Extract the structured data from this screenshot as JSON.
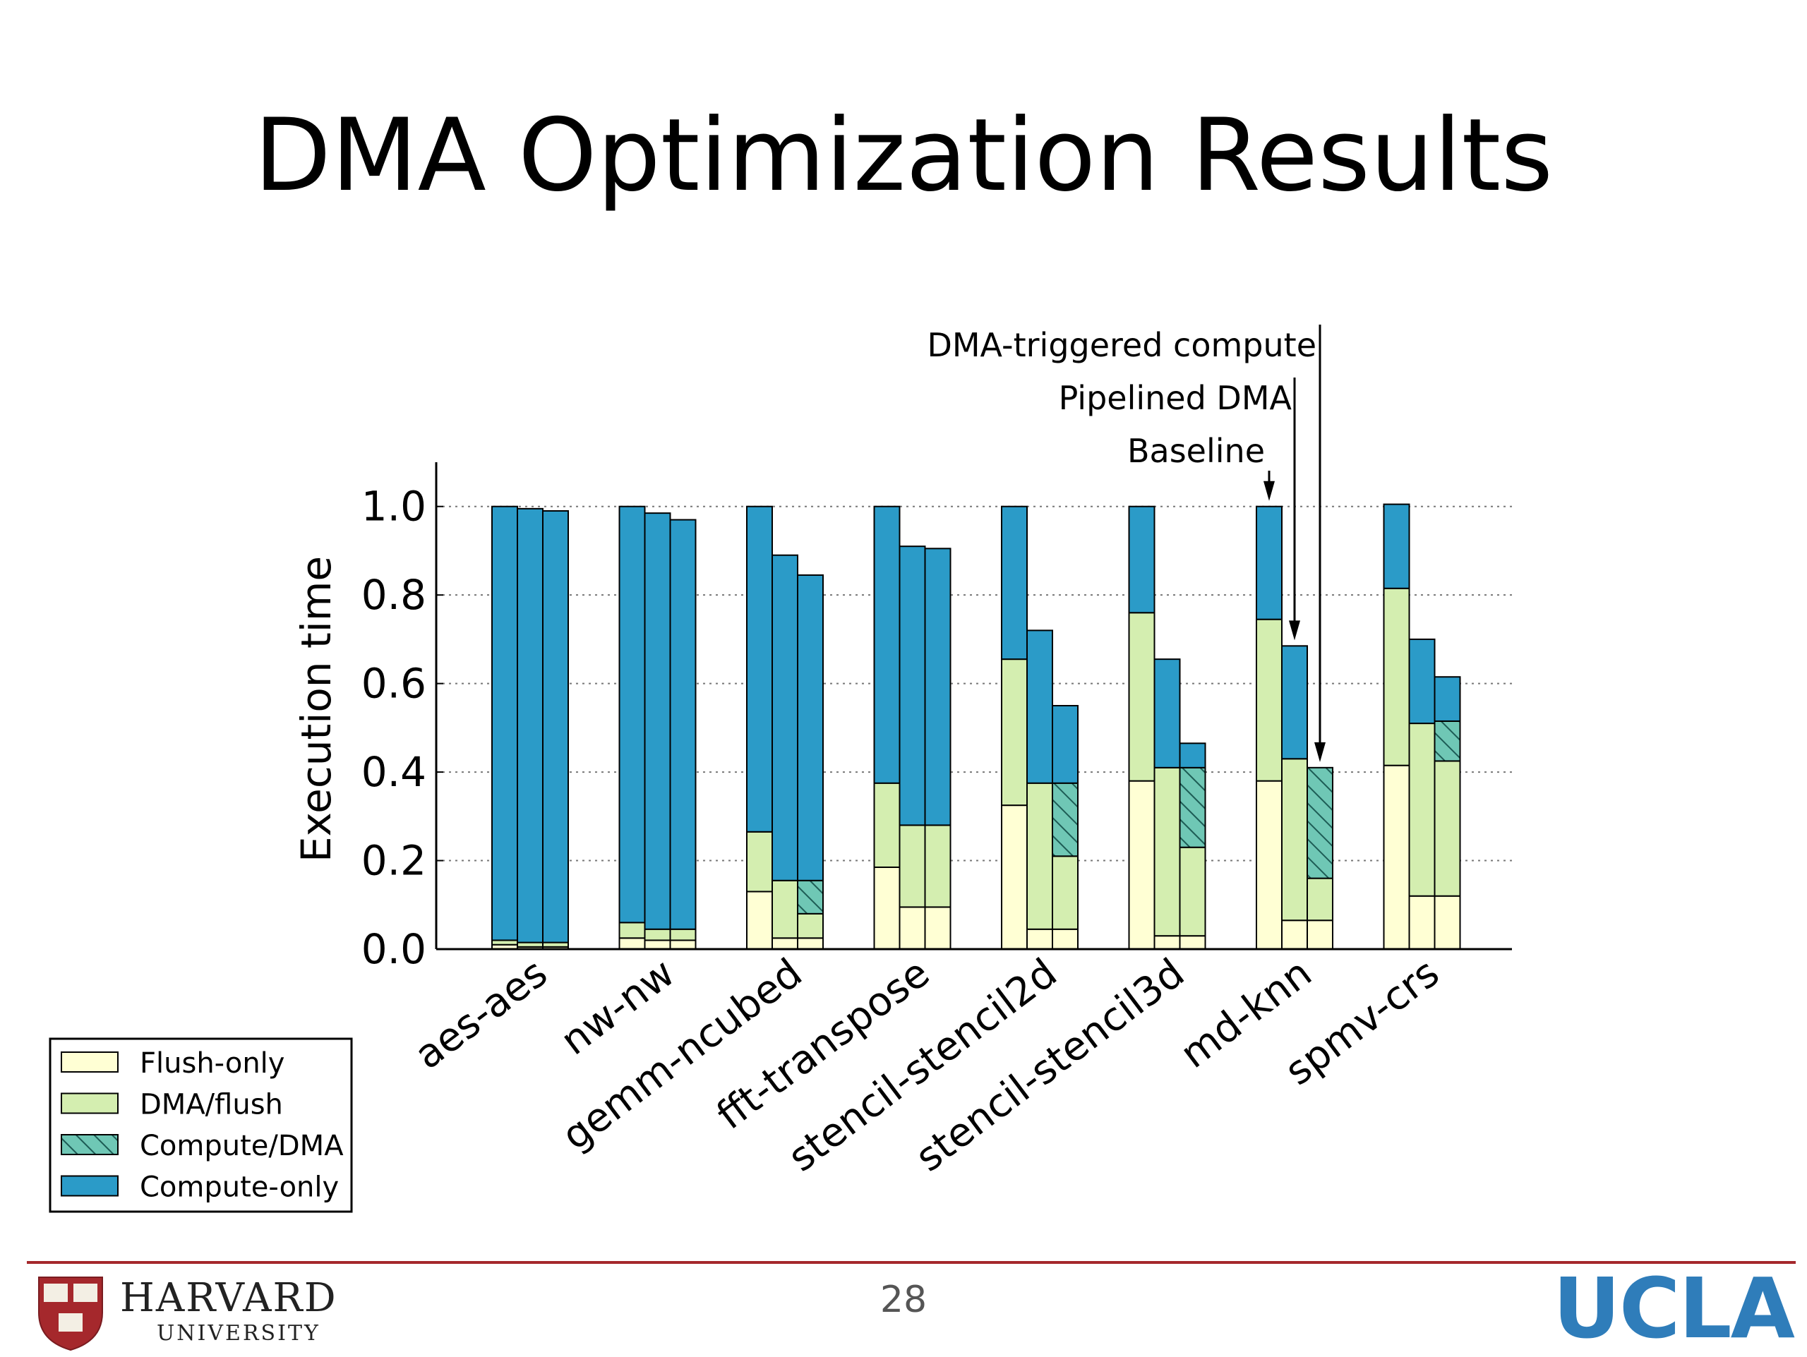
{
  "slide": {
    "title": "DMA Optimization Results",
    "page_number": "28"
  },
  "logos": {
    "harvard_name": "HARVARD",
    "harvard_sub": "UNIVERSITY",
    "harvard_shield": "VE RI TAS",
    "ucla": "UCLA"
  },
  "chart_data": {
    "type": "bar",
    "stacked": true,
    "ylabel": "Execution time",
    "ylim": [
      0,
      1.1
    ],
    "yticks": [
      "0.0",
      "0.2",
      "0.4",
      "0.6",
      "0.8",
      "1.0"
    ],
    "grid": "horizontal dotted",
    "categories": [
      "aes-aes",
      "nw-nw",
      "gemm-ncubed",
      "fft-transpose",
      "stencil-stencil2d",
      "stencil-stencil3d",
      "md-knn",
      "spmv-crs"
    ],
    "bars_per_category": [
      "Baseline",
      "Pipelined DMA",
      "DMA-triggered compute"
    ],
    "segment_colors": {
      "Flush-only": "#ffffd4",
      "DMA/flush": "#d4eeb0",
      "Compute/DMA": "#6fc7b5",
      "Compute-only": "#2b9bc8"
    },
    "legend": {
      "placement": "bottom-left, outside plot",
      "entries": [
        "Flush-only",
        "DMA/flush",
        "Compute/DMA",
        "Compute-only"
      ]
    },
    "series": [
      {
        "name": "Flush-only",
        "values": [
          [
            0.01,
            0.005,
            0.005
          ],
          [
            0.025,
            0.02,
            0.02
          ],
          [
            0.13,
            0.025,
            0.025
          ],
          [
            0.185,
            0.095,
            0.095
          ],
          [
            0.325,
            0.045,
            0.045
          ],
          [
            0.38,
            0.03,
            0.03
          ],
          [
            0.38,
            0.065,
            0.065
          ],
          [
            0.415,
            0.12,
            0.12
          ]
        ]
      },
      {
        "name": "DMA/flush",
        "values": [
          [
            0.01,
            0.01,
            0.01
          ],
          [
            0.035,
            0.025,
            0.025
          ],
          [
            0.135,
            0.13,
            0.055
          ],
          [
            0.19,
            0.185,
            0.185
          ],
          [
            0.33,
            0.33,
            0.165
          ],
          [
            0.38,
            0.38,
            0.2
          ],
          [
            0.365,
            0.365,
            0.095
          ],
          [
            0.4,
            0.39,
            0.305
          ]
        ]
      },
      {
        "name": "Compute/DMA",
        "values": [
          [
            0,
            0,
            0
          ],
          [
            0,
            0,
            0
          ],
          [
            0,
            0,
            0.075
          ],
          [
            0,
            0,
            0
          ],
          [
            0,
            0,
            0.165
          ],
          [
            0,
            0,
            0.18
          ],
          [
            0,
            0,
            0.25
          ],
          [
            0,
            0,
            0.09
          ]
        ]
      },
      {
        "name": "Compute-only",
        "values": [
          [
            0.98,
            0.98,
            0.975
          ],
          [
            0.94,
            0.94,
            0.925
          ],
          [
            0.735,
            0.735,
            0.69
          ],
          [
            0.625,
            0.63,
            0.625
          ],
          [
            0.345,
            0.345,
            0.175
          ],
          [
            0.24,
            0.245,
            0.055
          ],
          [
            0.255,
            0.255,
            0
          ],
          [
            0.19,
            0.19,
            0.1
          ]
        ]
      }
    ],
    "annotations": [
      "DMA-triggered compute",
      "Pipelined DMA",
      "Baseline"
    ]
  }
}
